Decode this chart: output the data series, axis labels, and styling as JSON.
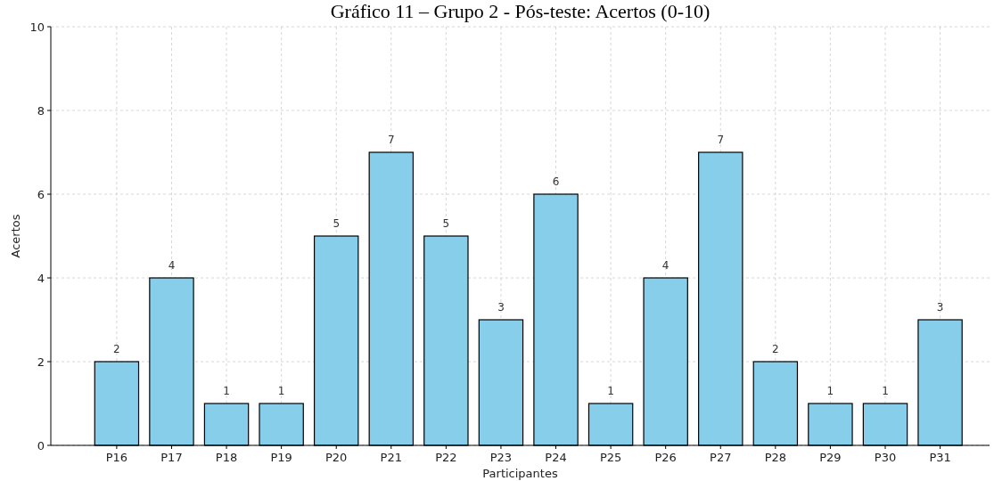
{
  "chart_data": {
    "type": "bar",
    "title": "Gráfico 11 – Grupo 2 - Pós-teste: Acertos (0-10)",
    "xlabel": "Participantes",
    "ylabel": "Acertos",
    "categories": [
      "P16",
      "P17",
      "P18",
      "P19",
      "P20",
      "P21",
      "P22",
      "P23",
      "P24",
      "P25",
      "P26",
      "P27",
      "P28",
      "P29",
      "P30",
      "P31"
    ],
    "values": [
      2,
      4,
      1,
      1,
      5,
      7,
      5,
      3,
      6,
      1,
      4,
      7,
      2,
      1,
      1,
      3
    ],
    "color": "#87ceeb",
    "ylim": [
      0,
      10
    ],
    "yticks": [
      0,
      2,
      4,
      6,
      8,
      10
    ],
    "grid": true,
    "data_labels": true
  }
}
